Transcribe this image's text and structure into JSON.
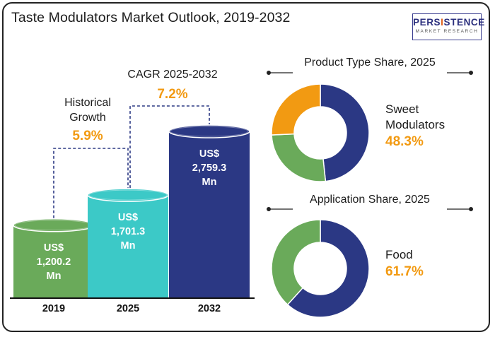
{
  "header": {
    "title": "Taste Modulators Market Outlook, 2019-2032",
    "logo_main_prefix": "PERS",
    "logo_main_highlight": "I",
    "logo_main_suffix": "STENCE",
    "logo_sub": "MARKET RESEARCH"
  },
  "colors": {
    "green": "#6aaa5a",
    "teal": "#3cc9c7",
    "navy": "#2b3884",
    "orange": "#f29a12",
    "connector": "#2b3884",
    "axis": "#111111"
  },
  "chart_data": [
    {
      "type": "bar",
      "title": "",
      "categories": [
        "2019",
        "2025",
        "2032"
      ],
      "series": [
        {
          "values": [
            1200.2,
            1701.3,
            2759.3
          ]
        }
      ],
      "value_labels": [
        [
          "US$",
          "1,200.2",
          "Mn"
        ],
        [
          "US$",
          "1,701.3",
          "Mn"
        ],
        [
          "US$",
          "2,759.3",
          "Mn"
        ]
      ],
      "annotations": [
        {
          "label": [
            "Historical",
            "Growth"
          ],
          "value": "5.9%",
          "from": "2019",
          "to": "2025"
        },
        {
          "label": [
            "CAGR 2025-2032"
          ],
          "value": "7.2%",
          "from": "2025",
          "to": "2032"
        }
      ]
    },
    {
      "type": "pie",
      "title": "Product Type Share, 2025",
      "slices": [
        {
          "value": 48.3,
          "color": "#2b3884"
        },
        {
          "value": 26.0,
          "color": "#6aaa5a"
        },
        {
          "value": 25.7,
          "color": "#f29a12"
        }
      ],
      "highlight_label": [
        "Sweet",
        "Modulators"
      ],
      "highlight_value": "48.3%"
    },
    {
      "type": "pie",
      "title": "Application Share, 2025",
      "slices": [
        {
          "value": 61.7,
          "color": "#2b3884"
        },
        {
          "value": 38.3,
          "color": "#6aaa5a"
        }
      ],
      "highlight_label": [
        "Food"
      ],
      "highlight_value": "61.7%"
    }
  ]
}
